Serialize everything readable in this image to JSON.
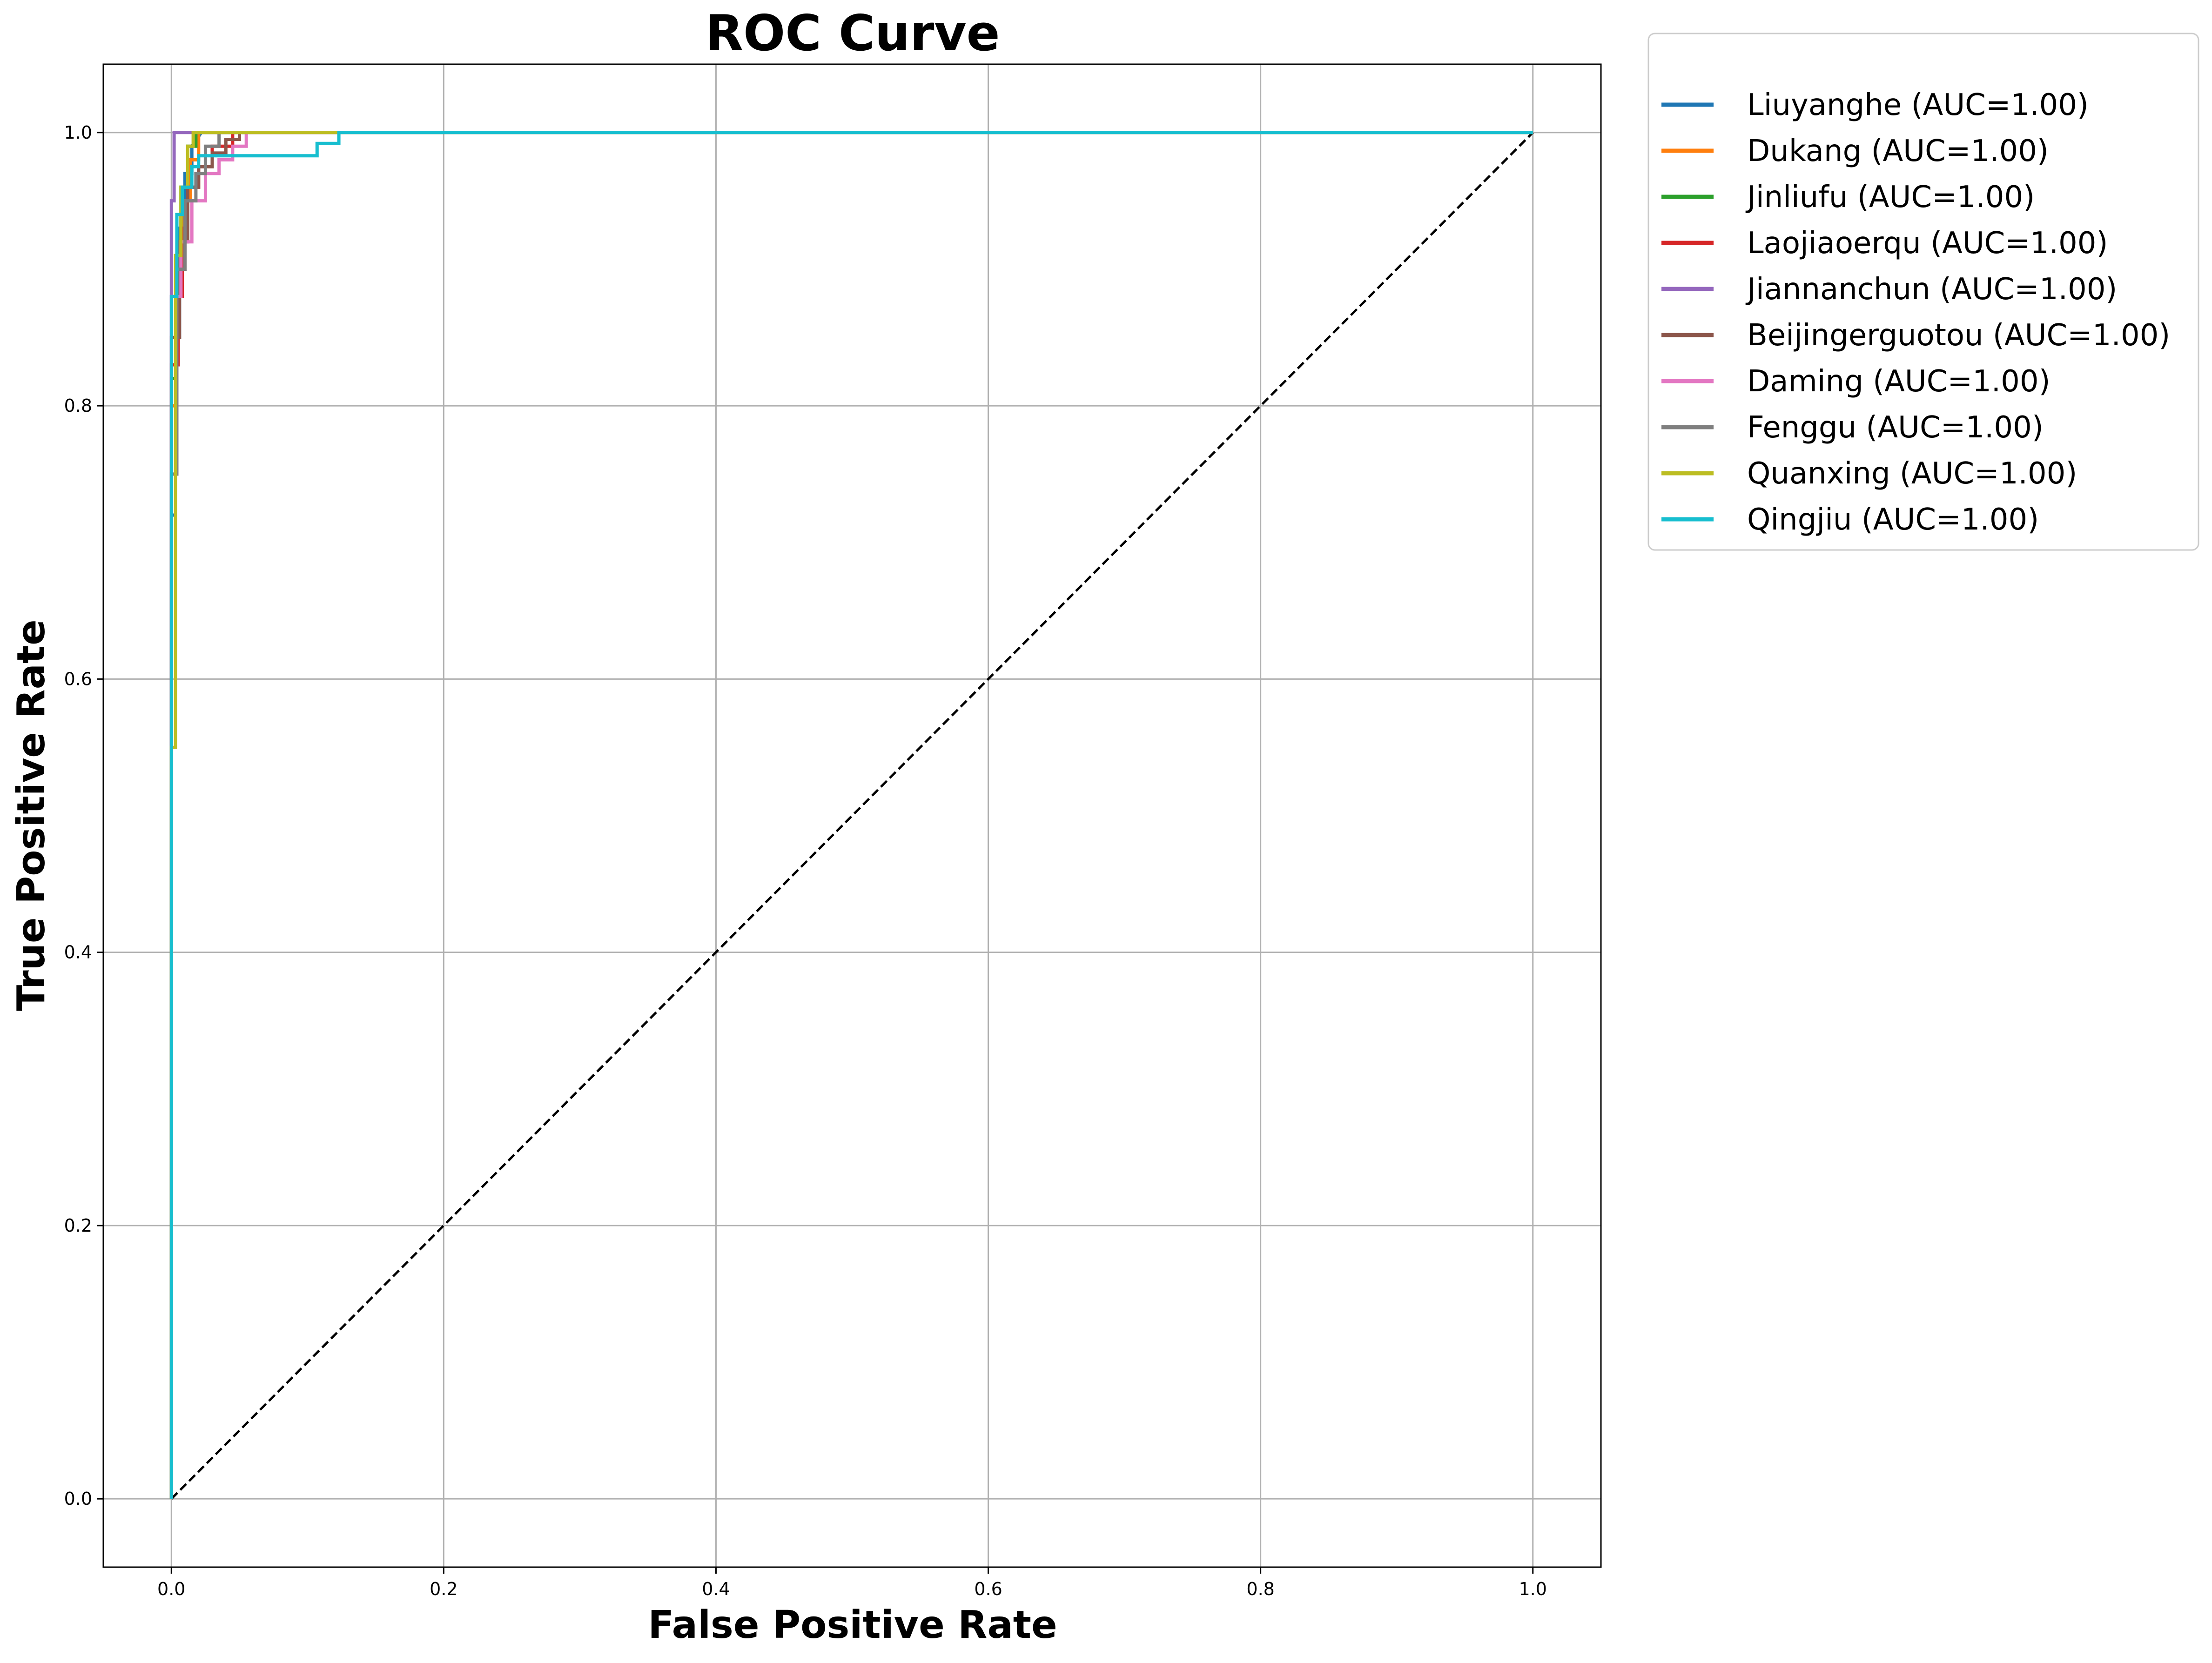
{
  "chart_data": {
    "type": "line",
    "title": "ROC Curve",
    "xlabel": "False Positive Rate",
    "ylabel": "True Positive Rate",
    "xlim": [
      -0.05,
      1.05
    ],
    "ylim": [
      -0.05,
      1.05
    ],
    "xticks": [
      "0.0",
      "0.2",
      "0.4",
      "0.6",
      "0.8",
      "1.0"
    ],
    "yticks": [
      "0.0",
      "0.2",
      "0.4",
      "0.6",
      "0.8",
      "1.0"
    ],
    "grid": true,
    "legend_position": "outside upper right",
    "reference_line": {
      "style": "dashed",
      "color": "#000000",
      "x": [
        0,
        1
      ],
      "y": [
        0,
        1
      ]
    },
    "series": [
      {
        "name": "Liuyanghe",
        "label": "Liuyanghe (AUC=1.00)",
        "color": "#1f77b4",
        "x": [
          0,
          0,
          0.003,
          0.003,
          0.006,
          0.006,
          0.01,
          0.01,
          0.015,
          0.015,
          0.022,
          1
        ],
        "y": [
          0,
          0.72,
          0.72,
          0.85,
          0.85,
          0.93,
          0.93,
          0.97,
          0.97,
          0.99,
          1.0,
          1.0
        ]
      },
      {
        "name": "Dukang",
        "label": "Dukang (AUC=1.00)",
        "color": "#ff7f0e",
        "x": [
          0,
          0,
          0.004,
          0.004,
          0.008,
          0.008,
          0.014,
          0.014,
          0.02,
          0.02,
          1
        ],
        "y": [
          0,
          0.8,
          0.8,
          0.9,
          0.9,
          0.95,
          0.95,
          0.98,
          0.98,
          1.0,
          1.0
        ]
      },
      {
        "name": "Jinliufu",
        "label": "Jinliufu (AUC=1.00)",
        "color": "#2ca02c",
        "x": [
          0,
          0,
          0.003,
          0.003,
          0.007,
          0.007,
          0.012,
          0.012,
          0.018,
          0.018,
          1
        ],
        "y": [
          0,
          0.82,
          0.82,
          0.91,
          0.91,
          0.96,
          0.96,
          0.99,
          0.99,
          1.0,
          1.0
        ]
      },
      {
        "name": "Laojiaoerqu",
        "label": "Laojiaoerqu (AUC=1.00)",
        "color": "#d62728",
        "x": [
          0,
          0,
          0.005,
          0.005,
          0.008,
          0.008,
          0.012,
          0.012,
          0.02,
          0.02,
          0.03,
          0.03,
          0.045,
          0.045,
          1
        ],
        "y": [
          0,
          0.83,
          0.83,
          0.88,
          0.88,
          0.93,
          0.93,
          0.96,
          0.96,
          0.975,
          0.975,
          0.99,
          0.99,
          1.0,
          1.0
        ]
      },
      {
        "name": "Jiannanchun",
        "label": "Jiannanchun (AUC=1.00)",
        "color": "#9467bd",
        "x": [
          0,
          0,
          0.002,
          0.002,
          1
        ],
        "y": [
          0,
          0.95,
          0.95,
          1.0,
          1.0
        ]
      },
      {
        "name": "Beijingerguotou",
        "label": "Beijingerguotou (AUC=1.00)",
        "color": "#8c564b",
        "x": [
          0,
          0,
          0.006,
          0.006,
          0.012,
          0.012,
          0.02,
          0.02,
          0.03,
          0.03,
          0.04,
          0.04,
          0.05,
          0.05,
          1
        ],
        "y": [
          0,
          0.85,
          0.85,
          0.92,
          0.92,
          0.96,
          0.96,
          0.975,
          0.975,
          0.985,
          0.985,
          0.995,
          0.995,
          1.0,
          1.0
        ]
      },
      {
        "name": "Daming",
        "label": "Daming (AUC=1.00)",
        "color": "#e377c2",
        "x": [
          0,
          0,
          0.007,
          0.007,
          0.015,
          0.015,
          0.025,
          0.025,
          0.035,
          0.035,
          0.045,
          0.045,
          0.055,
          0.055,
          1
        ],
        "y": [
          0,
          0.88,
          0.88,
          0.92,
          0.92,
          0.95,
          0.95,
          0.97,
          0.97,
          0.98,
          0.98,
          0.99,
          0.99,
          1.0,
          1.0
        ]
      },
      {
        "name": "Fenggu",
        "label": "Fenggu (AUC=1.00)",
        "color": "#7f7f7f",
        "x": [
          0,
          0,
          0.004,
          0.004,
          0.01,
          0.01,
          0.018,
          0.018,
          0.025,
          0.025,
          0.035,
          0.035,
          1
        ],
        "y": [
          0,
          0.75,
          0.75,
          0.9,
          0.9,
          0.95,
          0.95,
          0.97,
          0.97,
          0.99,
          0.99,
          1.0,
          1.0
        ]
      },
      {
        "name": "Quanxing",
        "label": "Quanxing (AUC=1.00)",
        "color": "#bcbd22",
        "x": [
          0,
          0,
          0.003,
          0.003,
          0.007,
          0.007,
          0.012,
          0.012,
          0.016,
          0.016,
          1
        ],
        "y": [
          0,
          0.55,
          0.55,
          0.91,
          0.91,
          0.96,
          0.96,
          0.99,
          0.99,
          1.0,
          1.0
        ]
      },
      {
        "name": "Qingjiu",
        "label": "Qingjiu (AUC=1.00)",
        "color": "#17becf",
        "x": [
          0,
          0,
          0.004,
          0.004,
          0.008,
          0.008,
          0.015,
          0.015,
          0.02,
          0.02,
          0.107,
          0.107,
          0.123,
          0.123,
          1
        ],
        "y": [
          0,
          0.88,
          0.88,
          0.94,
          0.94,
          0.96,
          0.96,
          0.975,
          0.975,
          0.983,
          0.983,
          0.992,
          0.992,
          1.0,
          1.0
        ]
      }
    ]
  }
}
